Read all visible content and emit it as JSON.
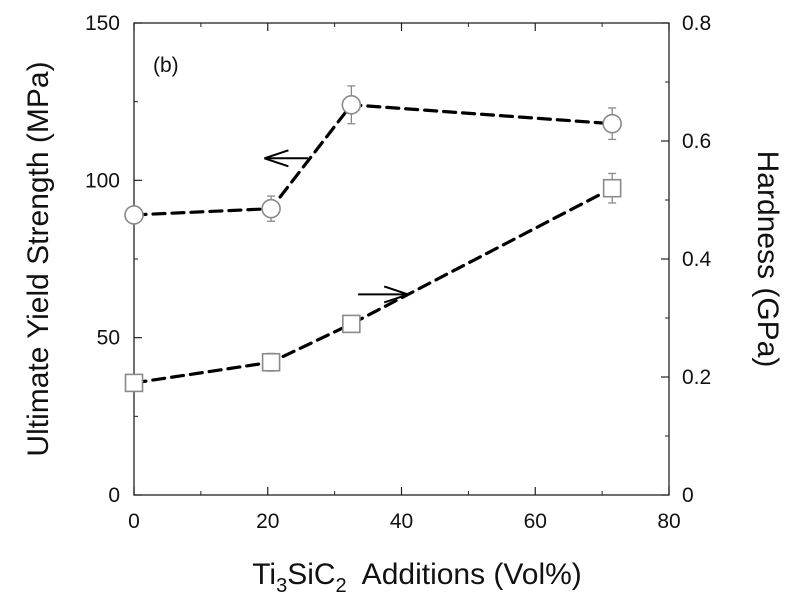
{
  "chart_data": {
    "type": "line",
    "panel_label": "(b)",
    "xlabel": {
      "prefix": "Ti",
      "sub1": "3",
      "mid": "SiC",
      "sub2": "2",
      "suffix": "  Additions (Vol%)"
    },
    "ylabel_left": "Ultimate Yield Strength (MPa)",
    "ylabel_right": "Hardness (GPa)",
    "xlim": [
      0,
      80
    ],
    "ylim_left": [
      0,
      150
    ],
    "ylim_right": [
      0,
      0.8
    ],
    "xticks": [
      "0",
      "20",
      "40",
      "60",
      "80"
    ],
    "yticks_left": [
      "0",
      "50",
      "100",
      "150"
    ],
    "yticks_right": [
      "0",
      "0.2",
      "0.4",
      "0.6",
      "0.8"
    ],
    "grid": false,
    "series": [
      {
        "axis": "left",
        "marker": "circle",
        "arrow_direction": "left",
        "x": [
          0,
          20.5,
          32.5,
          71.5
        ],
        "y": [
          89,
          91,
          124,
          118
        ],
        "err": [
          2,
          4,
          6,
          5
        ]
      },
      {
        "axis": "right",
        "marker": "square",
        "arrow_direction": "right",
        "x": [
          0,
          20.5,
          32.5,
          71.5
        ],
        "y": [
          0.19,
          0.225,
          0.29,
          0.52
        ],
        "err": [
          0.01,
          0.015,
          0.012,
          0.025
        ]
      }
    ],
    "colors": {
      "line": "#000000",
      "marker": "#8a8a8a",
      "axis": "#222222"
    }
  }
}
